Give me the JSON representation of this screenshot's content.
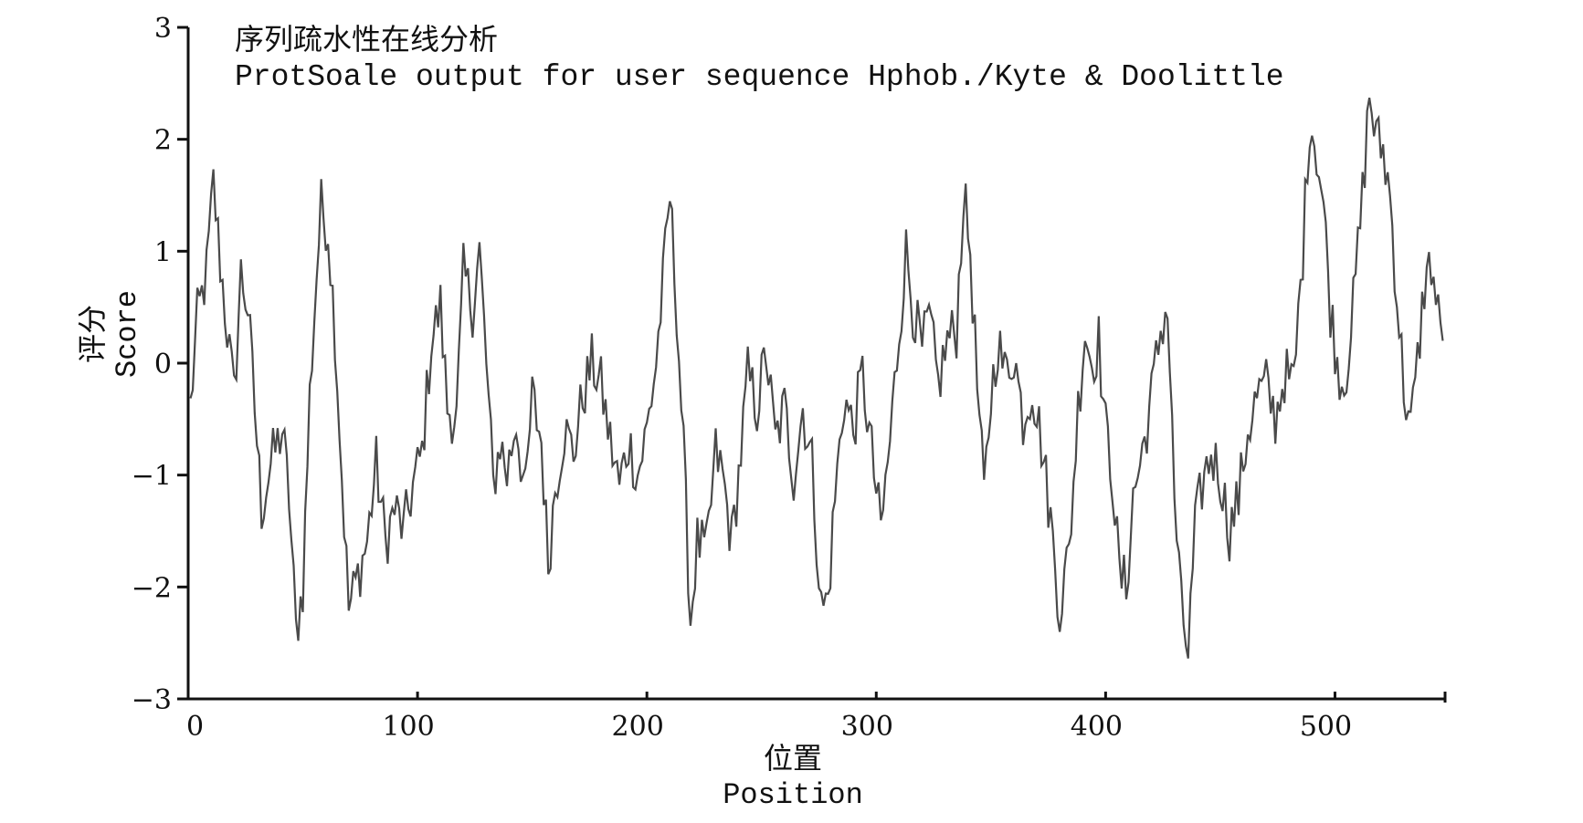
{
  "chart_data": {
    "type": "line",
    "title": "序列疏水性在线分析",
    "subtitle": "ProtSoale output for user sequence Hphob./Kyte & Doolittle",
    "xlabel": "位置",
    "xlabel_en": "Position",
    "ylabel": "评分",
    "ylabel_en": "Score",
    "xlim": [
      0,
      548
    ],
    "ylim": [
      -3,
      3
    ],
    "x_ticks": [
      0,
      100,
      200,
      300,
      400,
      500
    ],
    "y_ticks": [
      -3,
      -2,
      -1,
      0,
      1,
      2,
      3
    ],
    "x_tick_labels": [
      "0",
      "100",
      "200",
      "300",
      "400",
      "500"
    ],
    "y_tick_labels": [
      "−3",
      "−2",
      "−1",
      "0",
      "1",
      "2",
      "3"
    ],
    "grid": false,
    "series_color": "#4a4a4a",
    "series": [
      {
        "keypoints": [
          [
            1,
            -0.4
          ],
          [
            4,
            0.4
          ],
          [
            8,
            0.8
          ],
          [
            11,
            1.6
          ],
          [
            14,
            0.9
          ],
          [
            17,
            0.3
          ],
          [
            20,
            -0.3
          ],
          [
            23,
            0.8
          ],
          [
            26,
            0.5
          ],
          [
            29,
            -0.4
          ],
          [
            32,
            -1.3
          ],
          [
            36,
            -0.9
          ],
          [
            41,
            -0.6
          ],
          [
            44,
            -1.2
          ],
          [
            47,
            -2.4
          ],
          [
            50,
            -2.0
          ],
          [
            53,
            -0.3
          ],
          [
            56,
            0.8
          ],
          [
            58,
            1.4
          ],
          [
            61,
            1.2
          ],
          [
            64,
            0.3
          ],
          [
            67,
            -1.0
          ],
          [
            70,
            -2.2
          ],
          [
            74,
            -1.9
          ],
          [
            78,
            -1.6
          ],
          [
            82,
            -0.9
          ],
          [
            86,
            -1.6
          ],
          [
            90,
            -1.3
          ],
          [
            94,
            -1.5
          ],
          [
            98,
            -1.1
          ],
          [
            102,
            -0.8
          ],
          [
            106,
            0.2
          ],
          [
            110,
            0.5
          ],
          [
            113,
            -0.4
          ],
          [
            117,
            -0.5
          ],
          [
            120,
            0.8
          ],
          [
            124,
            0.5
          ],
          [
            127,
            1.0
          ],
          [
            130,
            0.0
          ],
          [
            133,
            -1.1
          ],
          [
            136,
            -0.7
          ],
          [
            139,
            -1.0
          ],
          [
            143,
            -0.5
          ],
          [
            147,
            -1.2
          ],
          [
            150,
            -0.3
          ],
          [
            154,
            -0.7
          ],
          [
            157,
            -1.8
          ],
          [
            160,
            -1.1
          ],
          [
            164,
            -0.6
          ],
          [
            168,
            -0.8
          ],
          [
            172,
            -0.3
          ],
          [
            176,
            0.0
          ],
          [
            180,
            -0.2
          ],
          [
            184,
            -0.7
          ],
          [
            188,
            -1.1
          ],
          [
            192,
            -0.7
          ],
          [
            196,
            -1.0
          ],
          [
            200,
            -0.6
          ],
          [
            204,
            0.0
          ],
          [
            207,
            0.7
          ],
          [
            210,
            1.5
          ],
          [
            213,
            0.5
          ],
          [
            216,
            -0.8
          ],
          [
            219,
            -2.3
          ],
          [
            222,
            -1.6
          ],
          [
            226,
            -1.7
          ],
          [
            230,
            -0.8
          ],
          [
            233,
            -1.0
          ],
          [
            237,
            -1.6
          ],
          [
            241,
            -0.8
          ],
          [
            244,
            -0.1
          ],
          [
            248,
            -0.4
          ],
          [
            252,
            0.1
          ],
          [
            256,
            -0.7
          ],
          [
            260,
            -0.4
          ],
          [
            264,
            -1.0
          ],
          [
            268,
            -0.4
          ],
          [
            272,
            -0.9
          ],
          [
            276,
            -2.2
          ],
          [
            279,
            -2.1
          ],
          [
            282,
            -1.2
          ],
          [
            286,
            -0.3
          ],
          [
            290,
            -0.6
          ],
          [
            294,
            -0.1
          ],
          [
            298,
            -0.8
          ],
          [
            302,
            -1.5
          ],
          [
            306,
            -0.7
          ],
          [
            310,
            0.3
          ],
          [
            313,
            1.0
          ],
          [
            316,
            0.5
          ],
          [
            320,
            0.1
          ],
          [
            323,
            0.4
          ],
          [
            327,
            -0.2
          ],
          [
            331,
            0.2
          ],
          [
            335,
            0.3
          ],
          [
            338,
            1.5
          ],
          [
            341,
            1.0
          ],
          [
            344,
            -0.2
          ],
          [
            347,
            -1.2
          ],
          [
            350,
            -0.3
          ],
          [
            353,
            0.2
          ],
          [
            356,
            -0.1
          ],
          [
            360,
            0.1
          ],
          [
            364,
            -0.5
          ],
          [
            368,
            -0.2
          ],
          [
            372,
            -0.7
          ],
          [
            376,
            -1.4
          ],
          [
            380,
            -2.2
          ],
          [
            384,
            -1.7
          ],
          [
            388,
            -0.4
          ],
          [
            391,
            0.3
          ],
          [
            394,
            0.0
          ],
          [
            397,
            0.2
          ],
          [
            400,
            -0.6
          ],
          [
            403,
            -1.0
          ],
          [
            406,
            -1.9
          ],
          [
            409,
            -2.0
          ],
          [
            412,
            -1.2
          ],
          [
            416,
            -0.8
          ],
          [
            420,
            -0.3
          ],
          [
            424,
            0.3
          ],
          [
            427,
            0.5
          ],
          [
            430,
            -1.2
          ],
          [
            433,
            -2.2
          ],
          [
            436,
            -2.6
          ],
          [
            439,
            -1.5
          ],
          [
            442,
            -1.1
          ],
          [
            446,
            -0.8
          ],
          [
            450,
            -1.0
          ],
          [
            454,
            -1.5
          ],
          [
            458,
            -1.2
          ],
          [
            462,
            -0.6
          ],
          [
            466,
            -0.3
          ],
          [
            470,
            -0.2
          ],
          [
            474,
            -0.5
          ],
          [
            478,
            -0.1
          ],
          [
            482,
            -0.2
          ],
          [
            486,
            1.0
          ],
          [
            489,
            2.2
          ],
          [
            492,
            1.9
          ],
          [
            495,
            1.4
          ],
          [
            498,
            0.5
          ],
          [
            501,
            0.0
          ],
          [
            504,
            -0.2
          ],
          [
            508,
            0.5
          ],
          [
            512,
            1.5
          ],
          [
            515,
            2.4
          ],
          [
            518,
            2.0
          ],
          [
            521,
            1.9
          ],
          [
            524,
            1.5
          ],
          [
            527,
            0.6
          ],
          [
            530,
            -0.2
          ],
          [
            533,
            -0.6
          ],
          [
            536,
            0.0
          ],
          [
            539,
            0.7
          ],
          [
            542,
            0.9
          ],
          [
            545,
            0.4
          ],
          [
            547,
            0.2
          ]
        ]
      }
    ]
  }
}
